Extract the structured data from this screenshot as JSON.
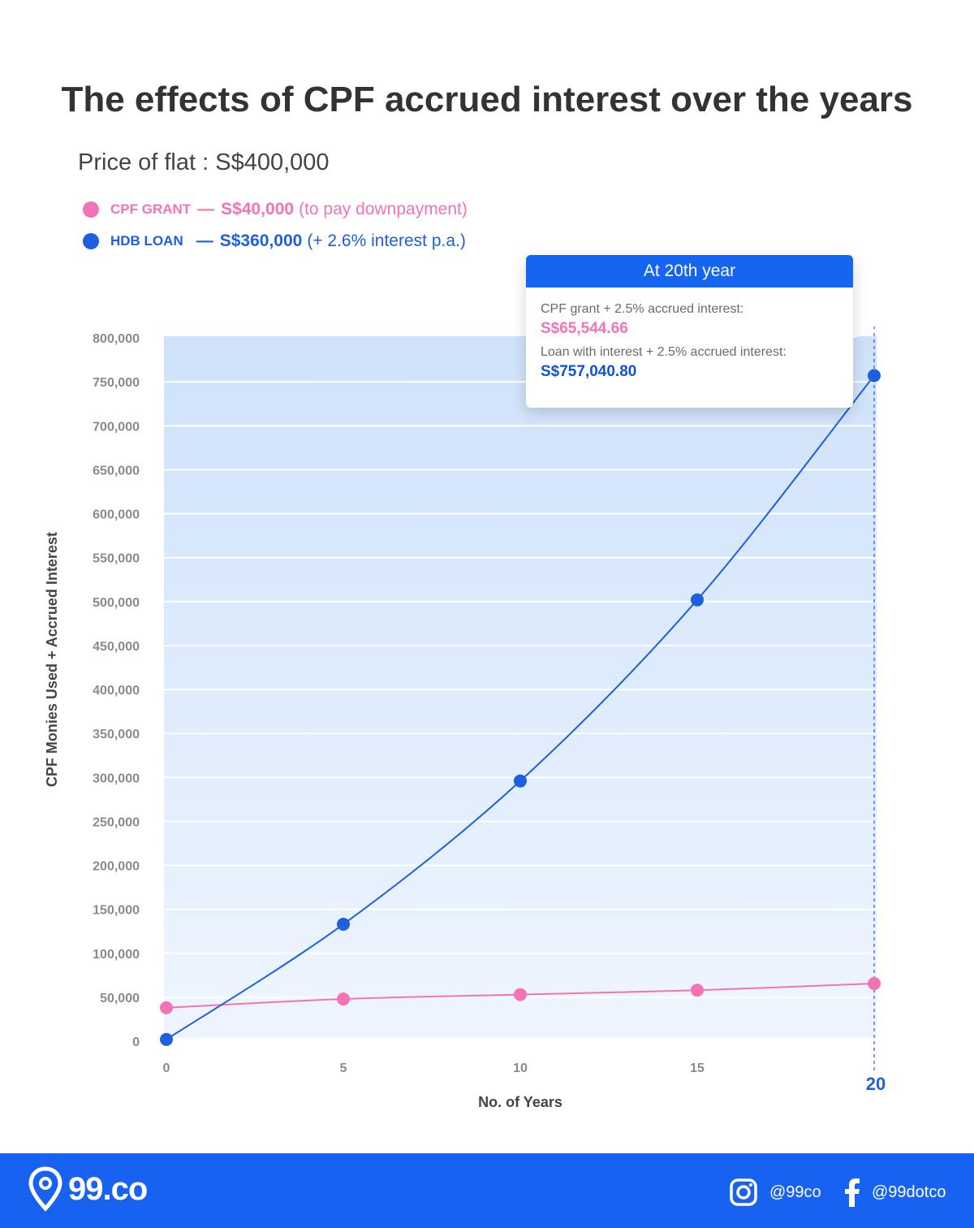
{
  "title": "The effects of CPF accrued interest over the years",
  "subtitle": "Price of flat : S$400,000",
  "legend": [
    {
      "key": "CPF GRANT",
      "dash": "—",
      "amount": "S$40,000",
      "note": "(to pay downpayment)",
      "color": "#f472b6"
    },
    {
      "key": "HDB LOAN",
      "dash": "—",
      "amount": "S$360,000",
      "note": "(+ 2.6% interest p.a.)",
      "color": "#1d5fe0"
    }
  ],
  "callout": {
    "header": "At 20th year",
    "grant_label": "CPF grant + 2.5% accrued interest:",
    "grant_value": "S$65,544.66",
    "loan_label": "Loan with interest + 2.5% accrued interest:",
    "loan_value": "S$757,040.80"
  },
  "chart_data": {
    "type": "line",
    "xlabel": "No. of Years",
    "ylabel": "CPF Monies Used + Accrued Interest",
    "x": [
      0,
      5,
      10,
      15,
      20
    ],
    "x_tick_labels": [
      "0",
      "5",
      "10",
      "15",
      "20"
    ],
    "ylim": [
      0,
      800000
    ],
    "y_ticks": [
      0,
      50000,
      100000,
      150000,
      200000,
      250000,
      300000,
      350000,
      400000,
      450000,
      500000,
      550000,
      600000,
      650000,
      700000,
      750000,
      800000
    ],
    "y_tick_labels": [
      "0",
      "50,000",
      "100,000",
      "150,000",
      "200,000",
      "250,000",
      "300,000",
      "350,000",
      "400,000",
      "450,000",
      "500,000",
      "550,000",
      "600,000",
      "650,000",
      "700,000",
      "750,000",
      "800,000"
    ],
    "highlight_x": 20,
    "grid": true,
    "series": [
      {
        "name": "CPF GRANT",
        "color": "#f472b6",
        "values": [
          38000,
          48000,
          53000,
          58000,
          65544.66
        ]
      },
      {
        "name": "HDB LOAN",
        "color": "#1d5fe0",
        "values": [
          2000,
          133000,
          296000,
          502000,
          757040.8
        ]
      }
    ]
  },
  "footer": {
    "logo": "99.co",
    "instagram": "@99co",
    "facebook": "@99dotco"
  }
}
